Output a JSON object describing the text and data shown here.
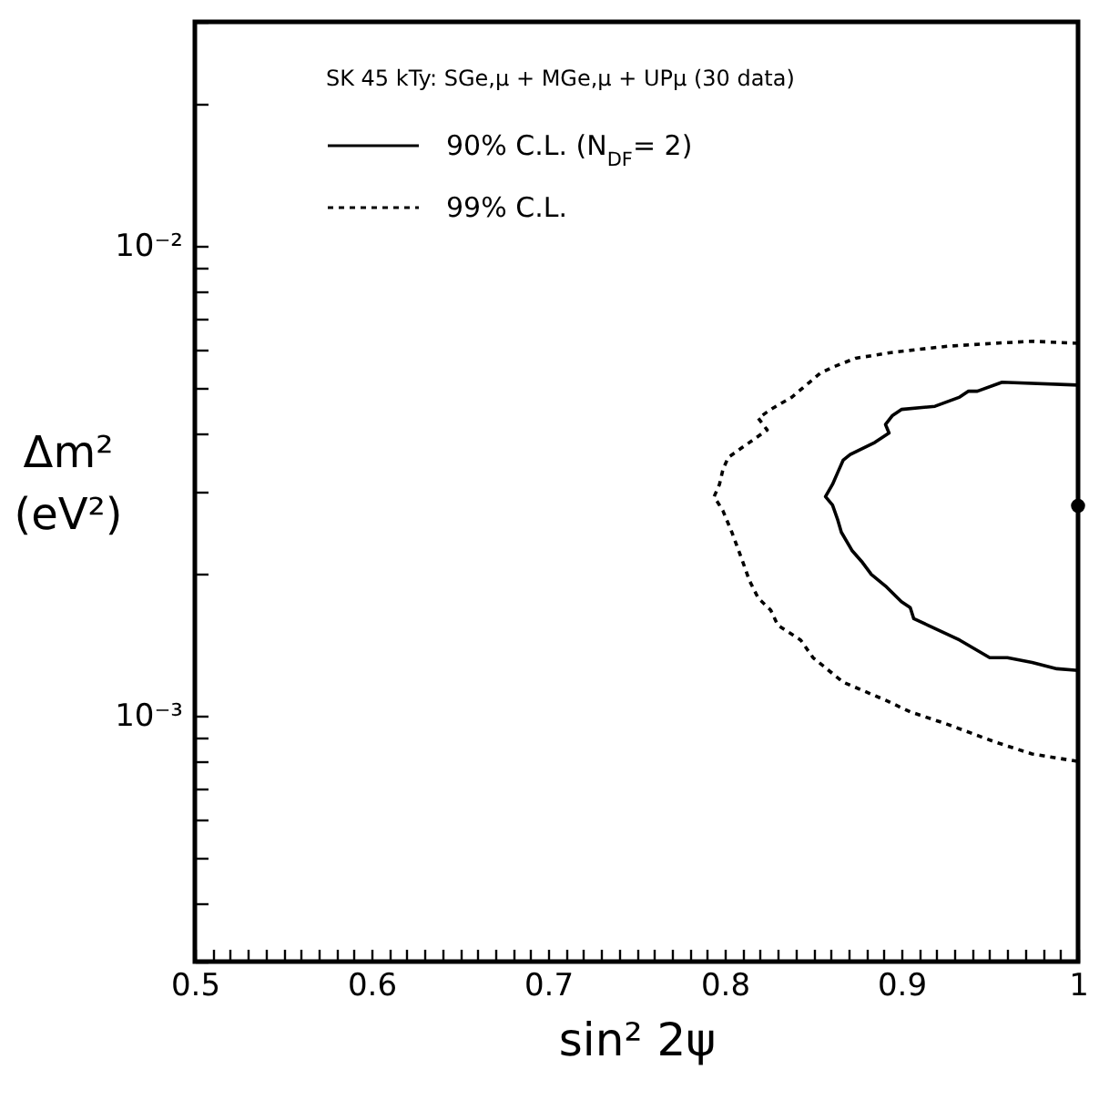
{
  "chart_data": {
    "type": "line",
    "legend_title": "SK 45 kTy:  SGe,μ + MGe,μ + UPμ  (30 data)",
    "xlabel": "sin² 2ψ",
    "ylabel": "Δm²\n(eV²)",
    "log": "y",
    "legend": "top",
    "grid": false,
    "xlim": [
      0.5,
      1.0
    ],
    "ylim": [
      0.0003,
      0.03
    ],
    "xticks": [
      0.5,
      {
        "value": 0.51,
        "label": null
      },
      {
        "value": 0.52,
        "label": null
      },
      {
        "value": 0.53,
        "label": null
      },
      {
        "value": 0.54,
        "label": null
      },
      {
        "value": 0.55,
        "label": null
      },
      {
        "value": 0.56,
        "label": null
      },
      {
        "value": 0.57,
        "label": null
      },
      {
        "value": 0.58,
        "label": null
      },
      {
        "value": 0.59,
        "label": null
      },
      0.6,
      {
        "value": 0.61,
        "label": null
      },
      {
        "value": 0.62,
        "label": null
      },
      {
        "value": 0.63,
        "label": null
      },
      {
        "value": 0.64,
        "label": null
      },
      {
        "value": 0.65,
        "label": null
      },
      {
        "value": 0.66,
        "label": null
      },
      {
        "value": 0.67,
        "label": null
      },
      {
        "value": 0.68,
        "label": null
      },
      {
        "value": 0.69,
        "label": null
      },
      0.7,
      {
        "value": 0.71,
        "label": null
      },
      {
        "value": 0.72,
        "label": null
      },
      {
        "value": 0.73,
        "label": null
      },
      {
        "value": 0.74,
        "label": null
      },
      {
        "value": 0.75,
        "label": null
      },
      {
        "value": 0.76,
        "label": null
      },
      {
        "value": 0.77,
        "label": null
      },
      {
        "value": 0.78,
        "label": null
      },
      {
        "value": 0.79,
        "label": null
      },
      0.8,
      {
        "value": 0.81,
        "label": null
      },
      {
        "value": 0.82,
        "label": null
      },
      {
        "value": 0.83,
        "label": null
      },
      {
        "value": 0.84,
        "label": null
      },
      {
        "value": 0.85,
        "label": null
      },
      {
        "value": 0.86,
        "label": null
      },
      {
        "value": 0.87,
        "label": null
      },
      {
        "value": 0.88,
        "label": null
      },
      {
        "value": 0.89,
        "label": null
      },
      0.9,
      {
        "value": 0.91,
        "label": null
      },
      {
        "value": 0.92,
        "label": null
      },
      {
        "value": 0.93,
        "label": null
      },
      {
        "value": 0.94,
        "label": null
      },
      {
        "value": 0.95,
        "label": null
      },
      {
        "value": 0.96,
        "label": null
      },
      {
        "value": 0.97,
        "label": null
      },
      {
        "value": 0.98,
        "label": null
      },
      {
        "value": 0.99,
        "label": null
      },
      1
    ],
    "yticks": [
      {
        "value": 0.0003,
        "label": null
      },
      {
        "value": 0.0004,
        "label": null
      },
      {
        "value": 0.0005,
        "label": null
      },
      {
        "value": 0.0006,
        "label": null
      },
      {
        "value": 0.0007,
        "label": null
      },
      {
        "value": 0.0008,
        "label": null
      },
      {
        "value": 0.0009,
        "label": null
      },
      {
        "value": 0.001,
        "label": "10⁻³"
      },
      {
        "value": 0.002,
        "label": null
      },
      {
        "value": 0.003,
        "label": null
      },
      {
        "value": 0.004,
        "label": null
      },
      {
        "value": 0.005,
        "label": null
      },
      {
        "value": 0.006,
        "label": null
      },
      {
        "value": 0.007,
        "label": null
      },
      {
        "value": 0.008,
        "label": null
      },
      {
        "value": 0.009,
        "label": null
      },
      {
        "value": 0.01,
        "label": "10⁻²"
      },
      {
        "value": 0.02,
        "label": null
      },
      {
        "value": 0.03,
        "label": null
      }
    ],
    "series": [
      {
        "name": "90% C.L.  (N$_{DF}$= 2)",
        "type": "line",
        "color": "#000000",
        "line_style": "solid",
        "x": [
          1.0,
          0.957,
          0.943,
          0.938,
          0.933,
          0.919,
          0.9,
          0.895,
          0.891,
          0.893,
          0.885,
          0.871,
          0.867,
          0.864,
          0.861,
          0.857,
          0.861,
          0.864,
          0.866,
          0.872,
          0.878,
          0.883,
          0.891,
          0.9,
          0.905,
          0.907,
          0.915,
          0.933,
          0.95,
          0.96,
          0.974,
          0.988,
          1.0
        ],
        "values": [
          0.00506,
          0.00513,
          0.00491,
          0.00491,
          0.00477,
          0.00456,
          0.00449,
          0.00436,
          0.00417,
          0.004,
          0.00382,
          0.0036,
          0.0035,
          0.0033,
          0.00311,
          0.00293,
          0.00281,
          0.00261,
          0.00246,
          0.00225,
          0.00212,
          0.002,
          0.00189,
          0.00175,
          0.0017,
          0.00161,
          0.00156,
          0.00145,
          0.00133,
          0.00133,
          0.0013,
          0.00126,
          0.00125
        ]
      },
      {
        "name": "99% C.L.",
        "type": "line",
        "color": "#000000",
        "line_style": "dotted",
        "x": [
          1.0,
          0.974,
          0.953,
          0.926,
          0.895,
          0.874,
          0.861,
          0.854,
          0.848,
          0.838,
          0.826,
          0.819,
          0.824,
          0.814,
          0.802,
          0.799,
          0.797,
          0.794,
          0.799,
          0.804,
          0.809,
          0.814,
          0.819,
          0.826,
          0.83,
          0.843,
          0.85,
          0.867,
          0.891,
          0.905,
          0.926,
          0.953,
          0.974,
          1.0
        ],
        "values": [
          0.00621,
          0.00627,
          0.00621,
          0.00612,
          0.00594,
          0.00577,
          0.00552,
          0.00536,
          0.00513,
          0.00477,
          0.00449,
          0.0043,
          0.00406,
          0.00382,
          0.00355,
          0.00335,
          0.00311,
          0.00293,
          0.00273,
          0.00246,
          0.00219,
          0.00194,
          0.00178,
          0.00168,
          0.00156,
          0.00145,
          0.00133,
          0.00118,
          0.00108,
          0.00102,
          0.00096,
          0.00088,
          0.00083,
          0.0008
        ]
      },
      {
        "type": "scatter",
        "color": "#000000",
        "marker": "circle",
        "x": [
          1.0
        ],
        "values": [
          0.0028
        ]
      }
    ]
  }
}
